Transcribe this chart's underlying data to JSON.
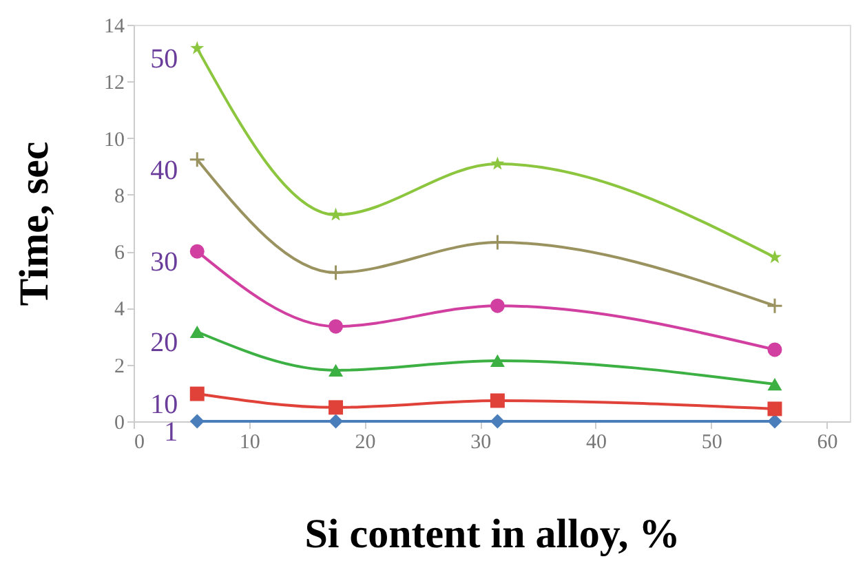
{
  "chart_data": {
    "type": "line",
    "xlabel": "Si content in alloy, %",
    "ylabel": "Time, sec",
    "x": [
      5.5,
      17.5,
      31.5,
      55.5
    ],
    "xlim": [
      0,
      62
    ],
    "xticks": [
      0,
      10,
      20,
      30,
      40,
      50,
      60
    ],
    "ylim": [
      0,
      14
    ],
    "yticks": [
      0,
      2,
      4,
      6,
      8,
      10,
      12,
      14
    ],
    "grid": false,
    "series": [
      {
        "name": "1",
        "color": "#4a7ebb",
        "marker": "diamond",
        "values": [
          0,
          0,
          0,
          0
        ]
      },
      {
        "name": "10",
        "color": "#e0423a",
        "marker": "square",
        "values": [
          0.97,
          0.49,
          0.73,
          0.44
        ]
      },
      {
        "name": "20",
        "color": "#3cb043",
        "marker": "triangle",
        "values": [
          3.16,
          1.8,
          2.14,
          1.31
        ]
      },
      {
        "name": "30",
        "color": "#d13fa0",
        "marker": "circle",
        "values": [
          6.0,
          3.35,
          4.08,
          2.53
        ]
      },
      {
        "name": "40",
        "color": "#9a9360",
        "marker": "cross",
        "values": [
          9.24,
          5.25,
          6.32,
          4.08
        ]
      },
      {
        "name": "50",
        "color": "#8cc63f",
        "marker": "star",
        "values": [
          13.17,
          7.29,
          9.09,
          5.79
        ]
      }
    ]
  }
}
